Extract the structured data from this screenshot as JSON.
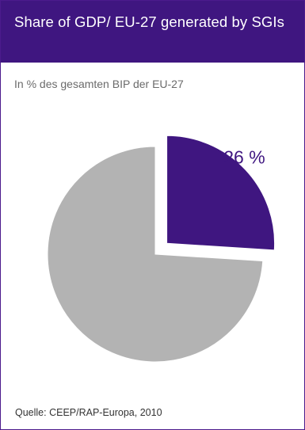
{
  "header": {
    "title": "Share of GDP/ EU-27 generated by SGIs",
    "background": "#3f1680"
  },
  "subtitle": "In % des gesamten BIP der EU-27",
  "source": "Quelle: CEEP/RAP-Europa, 2010",
  "chart_data": {
    "type": "pie",
    "title": "Share of GDP/ EU-27 generated by SGIs",
    "subtitle": "In % des gesamten BIP der EU-27",
    "slices": [
      {
        "value": 26,
        "label": "26 %",
        "color": "#3f1680",
        "exploded": true
      },
      {
        "value": 74,
        "label": "",
        "color": "#b3b3b3",
        "exploded": false
      }
    ],
    "legend": "none"
  }
}
